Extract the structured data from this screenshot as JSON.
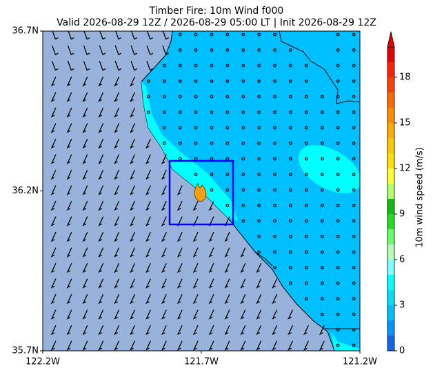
{
  "chart_data": {
    "type": "map",
    "title": "Timber Fire: 10m Wind f000",
    "subtitle": "Valid 2026-08-29 12Z / 2026-08-29 05:00 LT | Init 2026-08-29 12Z",
    "xlim": [
      -122.2,
      -121.2
    ],
    "xticks": [
      {
        "value": -122.2,
        "label": "122.2W"
      },
      {
        "value": -121.7,
        "label": "121.7W"
      },
      {
        "value": -121.2,
        "label": "121.2W"
      }
    ],
    "ylim": [
      35.7,
      36.7
    ],
    "yticks": [
      {
        "value": 35.7,
        "label": "35.7N"
      },
      {
        "value": 36.2,
        "label": "36.2N"
      },
      {
        "value": 36.7,
        "label": "36.7N"
      }
    ],
    "colorbar": {
      "label": "10m wind speed (m/s)",
      "lim": [
        0,
        20
      ],
      "ticks": [
        0,
        3,
        6,
        9,
        12,
        15,
        18
      ],
      "levels": [
        0,
        1,
        2,
        3,
        4,
        5,
        6,
        7,
        8,
        9,
        10,
        11,
        12,
        13,
        14,
        15,
        16,
        17,
        18,
        19,
        20
      ],
      "colors": [
        "#1464e6",
        "#0096ff",
        "#00bfff",
        "#00dfff",
        "#00ffff",
        "#7fffff",
        "#b4ffb4",
        "#66ff66",
        "#22dd22",
        "#11bb11",
        "#b4ff66",
        "#ffff33",
        "#ffe000",
        "#ffc800",
        "#ffaa00",
        "#ff8c00",
        "#ff6a00",
        "#ff4000",
        "#ff2000",
        "#e60000"
      ]
    }
  }
}
